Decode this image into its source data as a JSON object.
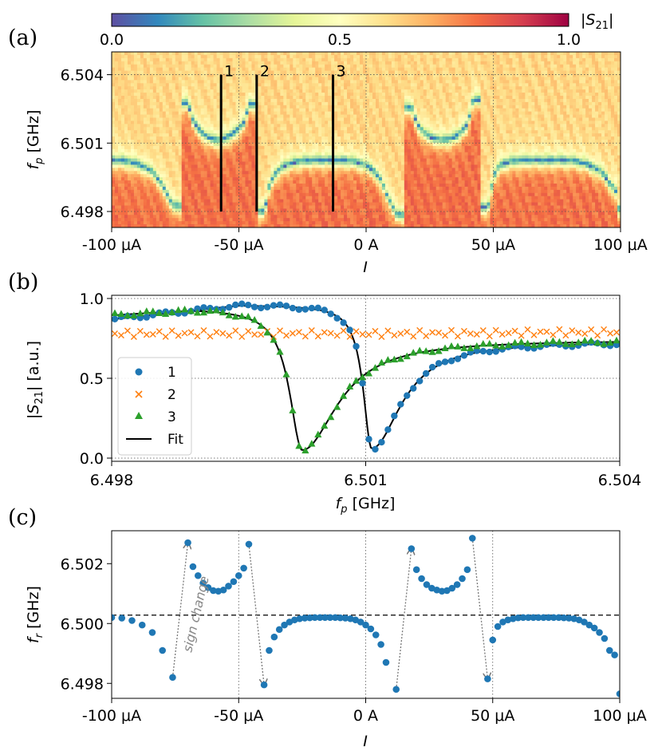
{
  "chart_data": [
    {
      "panel": "(a)",
      "type": "heatmap",
      "colorbar": {
        "label": "|S21|",
        "ticks": [
          "0.0",
          "0.5",
          "1.0"
        ],
        "range": [
          0,
          1
        ],
        "colormap": "Spectral_r"
      },
      "xlabel": "I",
      "ylabel": "f_p [GHz]",
      "xlim": [
        -100,
        100
      ],
      "ylim": [
        6.4973,
        6.505
      ],
      "xtick_labels": [
        "-100 μA",
        "-50 μA",
        "0 A",
        "50 μA",
        "100 μA"
      ],
      "ytick_labels": [
        "6.498",
        "6.501",
        "6.504"
      ],
      "cuts": [
        {
          "label": "1",
          "current": -57
        },
        {
          "label": "2",
          "current": -43
        },
        {
          "label": "3",
          "current": -13
        }
      ]
    },
    {
      "panel": "(b)",
      "type": "scatter",
      "xlabel": "f_p [GHz]",
      "ylabel": "|S21| [a.u.]",
      "xlim": [
        6.498,
        6.504
      ],
      "ylim": [
        0.0,
        1.0
      ],
      "xtick_labels": [
        "6.498",
        "6.501",
        "6.504"
      ],
      "ytick_labels": [
        "0.0",
        "0.5",
        "1.0"
      ],
      "legend_position": "lower-left",
      "series": [
        {
          "name": "1",
          "marker": "circle",
          "color": "#1f77b4",
          "resonance_GHz": 6.50107,
          "min_value": 0.06
        },
        {
          "name": "2",
          "marker": "cross",
          "color": "#ff7f0e",
          "baseline": 0.78
        },
        {
          "name": "3",
          "marker": "triangle",
          "color": "#2ca02c",
          "resonance_GHz": 6.50025,
          "min_value": 0.05
        },
        {
          "name": "Fit",
          "marker": "line",
          "color": "#000000"
        }
      ]
    },
    {
      "panel": "(c)",
      "type": "scatter",
      "xlabel": "I",
      "ylabel": "f_r [GHz]",
      "xlim": [
        -100,
        100
      ],
      "ylim": [
        6.4975,
        6.5031
      ],
      "xtick_labels": [
        "-100 μA",
        "-50 μA",
        "0 A",
        "50 μA",
        "100 μA"
      ],
      "ytick_labels": [
        "6.498",
        "6.500",
        "6.502"
      ],
      "reference_line": 6.50028,
      "annotation": "sign change",
      "points": [
        [
          -100,
          6.5002
        ],
        [
          -96,
          6.50018
        ],
        [
          -92,
          6.5001
        ],
        [
          -88,
          6.49995
        ],
        [
          -84,
          6.4997
        ],
        [
          -80,
          6.4991
        ],
        [
          -76,
          6.4982
        ],
        [
          -70,
          6.5027
        ],
        [
          -68,
          6.5019
        ],
        [
          -66,
          6.5016
        ],
        [
          -64,
          6.50135
        ],
        [
          -62,
          6.5012
        ],
        [
          -60,
          6.5011
        ],
        [
          -58,
          6.50108
        ],
        [
          -56,
          6.50112
        ],
        [
          -54,
          6.50125
        ],
        [
          -52,
          6.5014
        ],
        [
          -50,
          6.5016
        ],
        [
          -48,
          6.50185
        ],
        [
          -46,
          6.50265
        ],
        [
          -40,
          6.49795
        ],
        [
          -38,
          6.4991
        ],
        [
          -36,
          6.49955
        ],
        [
          -34,
          6.4998
        ],
        [
          -32,
          6.49995
        ],
        [
          -30,
          6.50005
        ],
        [
          -28,
          6.50012
        ],
        [
          -26,
          6.50016
        ],
        [
          -24,
          6.50018
        ],
        [
          -22,
          6.50019
        ],
        [
          -20,
          6.5002
        ],
        [
          -18,
          6.5002
        ],
        [
          -16,
          6.5002
        ],
        [
          -14,
          6.5002
        ],
        [
          -12,
          6.5002
        ],
        [
          -10,
          6.50019
        ],
        [
          -8,
          6.50018
        ],
        [
          -6,
          6.50016
        ],
        [
          -4,
          6.50012
        ],
        [
          -2,
          6.50005
        ],
        [
          0,
          6.49995
        ],
        [
          2,
          6.49982
        ],
        [
          4,
          6.49962
        ],
        [
          6,
          6.4993
        ],
        [
          8,
          6.4987
        ],
        [
          12,
          6.4978
        ],
        [
          18,
          6.5025
        ],
        [
          20,
          6.5018
        ],
        [
          22,
          6.5015
        ],
        [
          24,
          6.5013
        ],
        [
          26,
          6.50118
        ],
        [
          28,
          6.50112
        ],
        [
          30,
          6.50108
        ],
        [
          32,
          6.5011
        ],
        [
          34,
          6.50118
        ],
        [
          36,
          6.5013
        ],
        [
          38,
          6.5015
        ],
        [
          40,
          6.5018
        ],
        [
          42,
          6.50285
        ],
        [
          48,
          6.49815
        ],
        [
          50,
          6.49945
        ],
        [
          52,
          6.4999
        ],
        [
          54,
          6.50005
        ],
        [
          56,
          6.50012
        ],
        [
          58,
          6.50016
        ],
        [
          60,
          6.50019
        ],
        [
          62,
          6.5002
        ],
        [
          64,
          6.5002
        ],
        [
          66,
          6.5002
        ],
        [
          68,
          6.5002
        ],
        [
          70,
          6.5002
        ],
        [
          72,
          6.5002
        ],
        [
          74,
          6.5002
        ],
        [
          76,
          6.5002
        ],
        [
          78,
          6.50019
        ],
        [
          80,
          6.50018
        ],
        [
          82,
          6.50016
        ],
        [
          84,
          6.50012
        ],
        [
          86,
          6.50005
        ],
        [
          88,
          6.49995
        ],
        [
          90,
          6.49985
        ],
        [
          92,
          6.4997
        ],
        [
          94,
          6.4995
        ],
        [
          96,
          6.4991
        ],
        [
          98,
          6.49895
        ],
        [
          100,
          6.49765
        ]
      ],
      "sign_change_pairs": [
        [
          -76,
          -70
        ],
        [
          -46,
          -40
        ],
        [
          12,
          18
        ],
        [
          42,
          48
        ]
      ]
    }
  ]
}
